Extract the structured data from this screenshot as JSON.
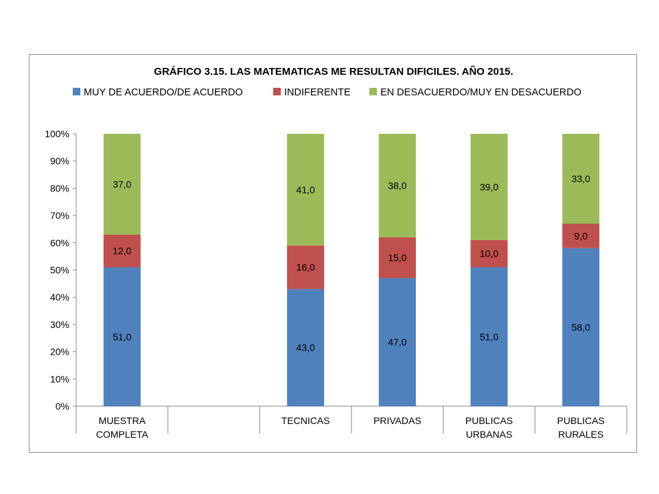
{
  "chart_data": {
    "type": "bar",
    "stacked": true,
    "percent_stacked": true,
    "title": "GRÁFICO 3.15. LAS MATEMATICAS  ME RESULTAN DIFICILES. AÑO 2015.",
    "xlabel": "",
    "ylabel": "",
    "ylim": [
      0,
      100
    ],
    "y_ticks": [
      "0%",
      "10%",
      "20%",
      "30%",
      "40%",
      "50%",
      "60%",
      "70%",
      "80%",
      "90%",
      "100%"
    ],
    "grid": false,
    "legend_position": "top",
    "categories": [
      [
        "MUESTRA",
        "COMPLETA"
      ],
      [],
      [
        "TECNICAS"
      ],
      [
        "PRIVADAS"
      ],
      [
        "PUBLICAS",
        "URBANAS"
      ],
      [
        "PUBLICAS",
        "RURALES"
      ]
    ],
    "series": [
      {
        "name": "MUY DE ACUERDO/DE ACUERDO",
        "color": "#4f81bd",
        "values": [
          51.0,
          null,
          43.0,
          47.0,
          51.0,
          58.0
        ],
        "labels": [
          "51,0",
          "",
          "43,0",
          "47,0",
          "51,0",
          "58,0"
        ]
      },
      {
        "name": "INDIFERENTE",
        "color": "#c0504d",
        "values": [
          12.0,
          null,
          16.0,
          15.0,
          10.0,
          9.0
        ],
        "labels": [
          "12,0",
          "",
          "16,0",
          "15,0",
          "10,0",
          "9,0"
        ]
      },
      {
        "name": "EN DESACUERDO/MUY EN DESACUERDO",
        "color": "#9bbb59",
        "values": [
          37.0,
          null,
          41.0,
          38.0,
          39.0,
          33.0
        ],
        "labels": [
          "37,0",
          "",
          "41,0",
          "38,0",
          "39,0",
          "33,0"
        ]
      }
    ],
    "axis_color": "#868686"
  }
}
